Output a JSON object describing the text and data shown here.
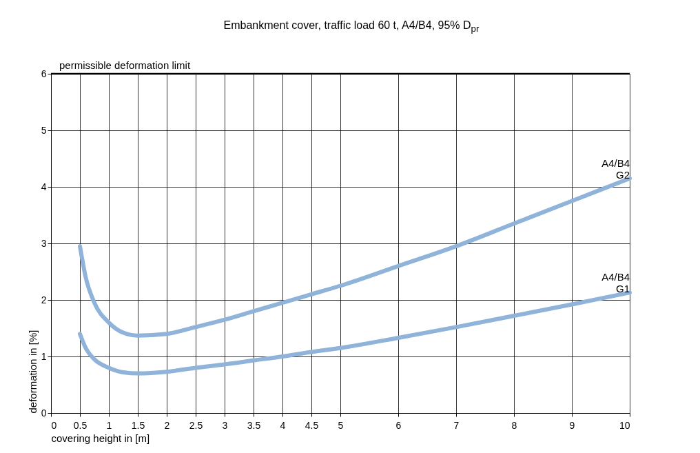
{
  "chart_data": {
    "type": "line",
    "title": "Embankment cover, traffic load 60 t, A4/B4, 95% D$_{pr}$",
    "xlabel": "covering height in [m]",
    "ylabel": "deformation in [%]",
    "x": [
      0.5,
      0.6,
      0.75,
      1,
      1.25,
      1.5,
      2,
      2.5,
      3,
      3.5,
      4,
      4.5,
      5,
      6,
      7,
      8,
      9,
      10
    ],
    "series": [
      {
        "name": "A4/B4\nG2",
        "color": "#8fb3d9",
        "values": [
          2.95,
          2.4,
          1.95,
          1.6,
          1.42,
          1.37,
          1.4,
          1.52,
          1.65,
          1.8,
          1.95,
          2.1,
          2.25,
          2.6,
          2.95,
          3.35,
          3.75,
          4.15
        ]
      },
      {
        "name": "A4/B4\nG1",
        "color": "#8fb3d9",
        "values": [
          1.4,
          1.15,
          0.95,
          0.8,
          0.72,
          0.7,
          0.73,
          0.8,
          0.86,
          0.93,
          1.0,
          1.08,
          1.15,
          1.33,
          1.52,
          1.72,
          1.92,
          2.13
        ]
      }
    ],
    "xlim": [
      0,
      10
    ],
    "xticks": [
      0,
      0.5,
      1,
      1.5,
      2,
      2.5,
      3,
      3.5,
      4,
      4.5,
      5,
      6,
      7,
      8,
      9,
      10
    ],
    "ylim": [
      0,
      6
    ],
    "yticks": [
      0,
      1,
      2,
      3,
      4,
      5,
      6
    ],
    "grid": true,
    "legend": false,
    "marker": "none",
    "line_style": "solid",
    "ref_lines": [
      {
        "axis": "y",
        "value": 6,
        "label": "permissible deformation limit",
        "color": "#000000"
      }
    ]
  }
}
